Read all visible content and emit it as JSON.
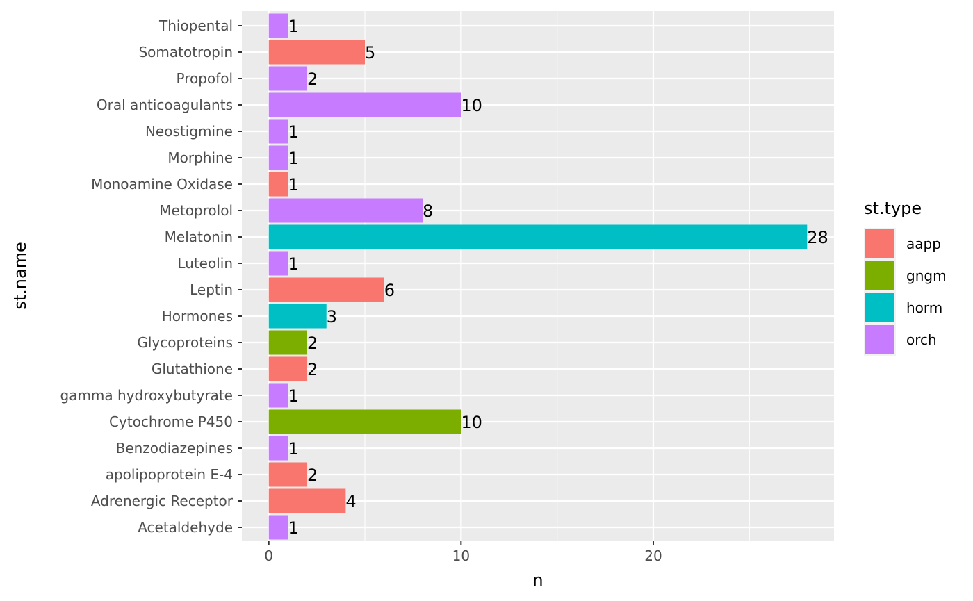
{
  "chart_data": {
    "type": "bar",
    "orientation": "horizontal",
    "xlabel": "n",
    "ylabel": "st.name",
    "xlim": [
      -1.4,
      29.4
    ],
    "x_ticks": [
      0,
      10,
      20
    ],
    "grid": true,
    "legend": {
      "title": "st.type",
      "position": "right",
      "entries": [
        {
          "name": "aapp",
          "color": "#F8766D"
        },
        {
          "name": "gngm",
          "color": "#7CAE00"
        },
        {
          "name": "horm",
          "color": "#00BFC4"
        },
        {
          "name": "orch",
          "color": "#C77CFF"
        }
      ]
    },
    "bars": [
      {
        "category": "Thiopental",
        "value": 1,
        "type": "orch"
      },
      {
        "category": "Somatotropin",
        "value": 5,
        "type": "aapp"
      },
      {
        "category": "Propofol",
        "value": 2,
        "type": "orch"
      },
      {
        "category": "Oral anticoagulants",
        "value": 10,
        "type": "orch"
      },
      {
        "category": "Neostigmine",
        "value": 1,
        "type": "orch"
      },
      {
        "category": "Morphine",
        "value": 1,
        "type": "orch"
      },
      {
        "category": "Monoamine Oxidase",
        "value": 1,
        "type": "aapp"
      },
      {
        "category": "Metoprolol",
        "value": 8,
        "type": "orch"
      },
      {
        "category": "Melatonin",
        "value": 28,
        "type": "horm"
      },
      {
        "category": "Luteolin",
        "value": 1,
        "type": "orch"
      },
      {
        "category": "Leptin",
        "value": 6,
        "type": "aapp"
      },
      {
        "category": "Hormones",
        "value": 3,
        "type": "horm"
      },
      {
        "category": "Glycoproteins",
        "value": 2,
        "type": "gngm"
      },
      {
        "category": "Glutathione",
        "value": 2,
        "type": "aapp"
      },
      {
        "category": "gamma hydroxybutyrate",
        "value": 1,
        "type": "orch"
      },
      {
        "category": "Cytochrome P450",
        "value": 10,
        "type": "gngm"
      },
      {
        "category": "Benzodiazepines",
        "value": 1,
        "type": "orch"
      },
      {
        "category": "apolipoprotein E-4",
        "value": 2,
        "type": "aapp"
      },
      {
        "category": "Adrenergic Receptor",
        "value": 4,
        "type": "aapp"
      },
      {
        "category": "Acetaldehyde",
        "value": 1,
        "type": "orch"
      }
    ]
  }
}
